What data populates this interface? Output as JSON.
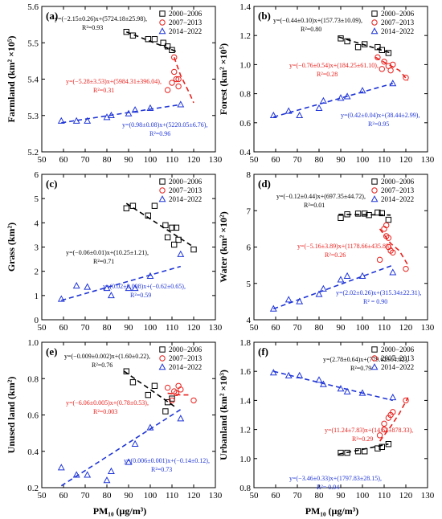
{
  "figure": {
    "shared_xlabel": "PM₁₀ (μg/m³)",
    "legend_names": [
      "2000−2006",
      "2007−2013",
      "2014−2022"
    ],
    "colors": {
      "s2000": "#000000",
      "s2007": "#e8211d",
      "s2014": "#1f35d6"
    }
  },
  "chart_data": [
    {
      "type": "scatter",
      "panel": "(a)",
      "ylabel": "Farmland (km² ×10⁵)",
      "xlim": [
        50,
        130
      ],
      "ylim": [
        5.2,
        5.6
      ],
      "xticks": [
        50,
        60,
        70,
        80,
        90,
        100,
        110,
        120,
        130
      ],
      "yticks": [
        5.2,
        5.3,
        5.4,
        5.5,
        5.6
      ],
      "ytick_labels": [
        "5.2",
        "5.3",
        "5.4",
        "5.5",
        "5.6"
      ],
      "series": [
        {
          "name": "2000−2006",
          "marker": "square",
          "x": [
            89,
            92,
            99,
            102,
            106,
            108,
            110
          ],
          "y": [
            5.53,
            5.52,
            5.51,
            5.51,
            5.5,
            5.49,
            5.48
          ],
          "fit": [
            [
              89,
              5.53
            ],
            [
              112,
              5.476
            ]
          ],
          "equation": "y=(−2.15±0.26)x+(5724.18±25.98),",
          "r2": "R²=0.93"
        },
        {
          "name": "2007−2013",
          "marker": "circle",
          "x": [
            111,
            111,
            112,
            113,
            113,
            110,
            108
          ],
          "y": [
            5.46,
            5.42,
            5.4,
            5.4,
            5.38,
            5.39,
            5.37
          ],
          "fit": [
            [
              111,
              5.46
            ],
            [
              114,
              5.41
            ],
            [
              118,
              5.362
            ],
            [
              120,
              5.335
            ]
          ],
          "equation": "y=(−5.28±3.53)x+(5984.31±396.04),",
          "r2": "R²=0.31"
        },
        {
          "name": "2014−2022",
          "marker": "triangle",
          "x": [
            59,
            66,
            71,
            80,
            82,
            90,
            93,
            100,
            114
          ],
          "y": [
            5.285,
            5.285,
            5.285,
            5.295,
            5.3,
            5.305,
            5.315,
            5.32,
            5.33
          ],
          "fit": [
            [
              59,
              5.28
            ],
            [
              114,
              5.33
            ]
          ],
          "equation": "y=(0.98±0.08)x+(5220.05±6.76),",
          "r2": "R²=0.96"
        }
      ]
    },
    {
      "type": "scatter",
      "panel": "(b)",
      "ylabel": "Forest (km² ×10⁵)",
      "xlim": [
        50,
        130
      ],
      "ylim": [
        0.4,
        1.4
      ],
      "xticks": [
        50,
        60,
        70,
        80,
        90,
        100,
        110,
        120,
        130
      ],
      "yticks": [
        0.4,
        0.6,
        0.8,
        1.0,
        1.2,
        1.4
      ],
      "ytick_labels": [
        "0.4",
        "0.6",
        "0.8",
        "1.0",
        "1.2",
        "1.4"
      ],
      "series": [
        {
          "name": "2000−2006",
          "marker": "square",
          "x": [
            90,
            93,
            98,
            101,
            107,
            109,
            112
          ],
          "y": [
            1.18,
            1.16,
            1.12,
            1.14,
            1.12,
            1.1,
            1.08
          ],
          "fit": [
            [
              89,
              1.19
            ],
            [
              113,
              1.08
            ]
          ],
          "equation": "y=(−0.44±0.10)x+(157.73±10.09),",
          "r2": "R²=0.80"
        },
        {
          "name": "2007−2013",
          "marker": "circle",
          "x": [
            112,
            113,
            114,
            110,
            109,
            107,
            120
          ],
          "y": [
            0.99,
            0.96,
            1.0,
            1.02,
            0.97,
            1.05,
            0.91
          ],
          "fit": [
            [
              106,
              1.05
            ],
            [
              112,
              1.0
            ],
            [
              117,
              0.96
            ],
            [
              121,
              0.89
            ]
          ],
          "equation": "y=(−0.76±0.54)x+(184.25±61.10),",
          "r2": "R²=0.28"
        },
        {
          "name": "2014−2022",
          "marker": "triangle",
          "x": [
            59,
            66,
            71,
            80,
            82,
            90,
            93,
            100,
            114
          ],
          "y": [
            0.65,
            0.68,
            0.65,
            0.7,
            0.75,
            0.77,
            0.78,
            0.82,
            0.87
          ],
          "fit": [
            [
              59,
              0.64
            ],
            [
              114,
              0.87
            ]
          ],
          "equation": "y=(0.42±0.04)x+(38.44±2.99),",
          "r2": "R²=0.95"
        }
      ]
    },
    {
      "type": "scatter",
      "panel": "(c)",
      "ylabel": "Grass (km²)",
      "xlim": [
        50,
        130
      ],
      "ylim": [
        0,
        6
      ],
      "xticks": [
        50,
        60,
        70,
        80,
        90,
        100,
        110,
        120,
        130
      ],
      "yticks": [
        0,
        1,
        2,
        3,
        4,
        5,
        6
      ],
      "ytick_labels": [
        "0",
        "1",
        "2",
        "3",
        "4",
        "5",
        "6"
      ],
      "series": [
        {
          "name": "2000−2006",
          "marker": "square",
          "x": [
            89,
            92,
            99,
            102,
            107,
            108,
            110,
            111,
            112,
            113,
            120
          ],
          "y": [
            4.6,
            4.7,
            4.3,
            4.7,
            3.9,
            3.4,
            3.8,
            3.1,
            3.8,
            3.3,
            2.9
          ],
          "fit": [
            [
              89,
              4.8
            ],
            [
              120,
              3.0
            ]
          ],
          "equation": "y=(−0.06±0.01)x+(10.25±1.21),",
          "r2": "R²=0.71"
        },
        {
          "name": "2007−2013",
          "marker": "circle",
          "x": [],
          "y": [],
          "fit": [],
          "equation": "",
          "r2": ""
        },
        {
          "name": "2014−2022",
          "marker": "triangle",
          "x": [
            59,
            66,
            71,
            80,
            82,
            90,
            93,
            100,
            114
          ],
          "y": [
            0.85,
            1.4,
            1.35,
            1.3,
            1.0,
            1.3,
            1.3,
            1.8,
            2.7
          ],
          "fit": [
            [
              59,
              0.8
            ],
            [
              114,
              2.2
            ]
          ],
          "equation": "y=(0.02±0.008)x+(−0.62±0.65),",
          "r2": "R²=0.59"
        }
      ]
    },
    {
      "type": "scatter",
      "panel": "(d)",
      "ylabel": "Water (km² ×10²)",
      "xlim": [
        50,
        130
      ],
      "ylim": [
        4,
        8
      ],
      "xticks": [
        50,
        60,
        70,
        80,
        90,
        100,
        110,
        120,
        130
      ],
      "yticks": [
        4,
        5,
        6,
        7,
        8
      ],
      "ytick_labels": [
        "4",
        "5",
        "6",
        "7",
        "8"
      ],
      "series": [
        {
          "name": "2000−2006",
          "marker": "square",
          "x": [
            90,
            93,
            98,
            101,
            103,
            107,
            109,
            112
          ],
          "y": [
            6.8,
            6.9,
            6.92,
            6.92,
            6.88,
            6.95,
            6.93,
            6.75
          ],
          "fit": [
            [
              89,
              6.9
            ],
            [
              113,
              6.88
            ]
          ],
          "equation": "y=(−0.12±0.44)x+(697.35±44.72),",
          "r2": "R²=0.01"
        },
        {
          "name": "2007−2013",
          "marker": "circle",
          "x": [
            110,
            111,
            111,
            112,
            112,
            113,
            108,
            114,
            120
          ],
          "y": [
            6.5,
            6.6,
            6.3,
            6.0,
            6.25,
            5.9,
            5.65,
            5.85,
            5.4
          ],
          "fit": [
            [
              108,
              6.5
            ],
            [
              113,
              6.1
            ],
            [
              117,
              5.9
            ],
            [
              121,
              5.5
            ]
          ],
          "equation": "y=(−5.16±3.89)x+(1178.66±435.83),",
          "r2": "R²=0.26"
        },
        {
          "name": "2014−2022",
          "marker": "triangle",
          "x": [
            59,
            66,
            71,
            80,
            82,
            90,
            93,
            100,
            114
          ],
          "y": [
            4.3,
            4.55,
            4.5,
            4.7,
            4.85,
            5.1,
            5.2,
            5.2,
            5.3
          ],
          "fit": [
            [
              59,
              4.3
            ],
            [
              114,
              5.5
            ]
          ],
          "equation": "y=(2.02±0.26)x+(315.34±22.31),",
          "r2": "R² = 0.90"
        }
      ]
    },
    {
      "type": "scatter",
      "panel": "(e)",
      "ylabel": "Unused land (km²)",
      "xlim": [
        50,
        130
      ],
      "ylim": [
        0.2,
        1.0
      ],
      "xticks": [
        50,
        60,
        70,
        80,
        90,
        100,
        110,
        120,
        130
      ],
      "yticks": [
        0.2,
        0.4,
        0.6,
        0.8,
        1.0
      ],
      "ytick_labels": [
        "0.2",
        "0.4",
        "0.6",
        "0.8",
        "1.0"
      ],
      "series": [
        {
          "name": "2000−2006",
          "marker": "square",
          "x": [
            89,
            92,
            99,
            102,
            107,
            108,
            110
          ],
          "y": [
            0.84,
            0.78,
            0.71,
            0.76,
            0.62,
            0.67,
            0.69
          ],
          "fit": [
            [
              88,
              0.84
            ],
            [
              112,
              0.64
            ]
          ],
          "equation": "y=(−0.009±0.002)x+(1.60±0.22),",
          "r2": "R²=0.76"
        },
        {
          "name": "2007−2013",
          "marker": "circle",
          "x": [
            108,
            110,
            111,
            112,
            113,
            114,
            120
          ],
          "y": [
            0.75,
            0.68,
            0.73,
            0.72,
            0.76,
            0.74,
            0.68
          ],
          "fit": [
            [
              108,
              0.72
            ],
            [
              114,
              0.71
            ],
            [
              118,
              0.71
            ]
          ],
          "equation": "y=(−6.06±0.005)x+(0.78±0.53),",
          "r2": "R²=0.003"
        },
        {
          "name": "2014−2022",
          "marker": "triangle",
          "x": [
            59,
            66,
            71,
            80,
            82,
            90,
            93,
            100,
            114
          ],
          "y": [
            0.31,
            0.27,
            0.27,
            0.24,
            0.29,
            0.34,
            0.44,
            0.53,
            0.58
          ],
          "fit": [
            [
              59,
              0.21
            ],
            [
              114,
              0.63
            ]
          ],
          "equation": "y=(0.006±0.001)x+(−0.14±0.12),",
          "r2": "R²=0.73"
        }
      ]
    },
    {
      "type": "scatter",
      "panel": "(f)",
      "ylabel": "Urbanland (km² ×10³)",
      "xlim": [
        50,
        130
      ],
      "ylim": [
        0.8,
        1.8
      ],
      "xticks": [
        50,
        60,
        70,
        80,
        90,
        100,
        110,
        120,
        130
      ],
      "yticks": [
        0.8,
        1.0,
        1.2,
        1.4,
        1.6,
        1.8
      ],
      "ytick_labels": [
        "0.8",
        "1.0",
        "1.2",
        "1.4",
        "1.6",
        "1.8"
      ],
      "series": [
        {
          "name": "2000−2006",
          "marker": "square",
          "x": [
            90,
            93,
            98,
            101,
            107,
            109,
            112
          ],
          "y": [
            1.04,
            1.04,
            1.05,
            1.05,
            1.07,
            1.08,
            1.1
          ],
          "fit": [
            [
              89,
              1.03
            ],
            [
              112,
              1.1
            ]
          ],
          "equation": "y=(2.78±0.64)x+(779.62±64.82),",
          "r2": "R²=0.79"
        },
        {
          "name": "2007−2013",
          "marker": "circle",
          "x": [
            108,
            110,
            110,
            112,
            113,
            114,
            120
          ],
          "y": [
            1.16,
            1.2,
            1.24,
            1.28,
            1.3,
            1.32,
            1.4
          ],
          "fit": [
            [
              108,
              1.12
            ],
            [
              113,
              1.22
            ],
            [
              117,
              1.31
            ],
            [
              121,
              1.42
            ]
          ],
          "equation": "y=(11.24±7.83)x+(14.63±878.33),",
          "r2": "R²=0.29"
        },
        {
          "name": "2014−2022",
          "marker": "triangle",
          "x": [
            59,
            66,
            71,
            80,
            82,
            90,
            93,
            100,
            114
          ],
          "y": [
            1.59,
            1.57,
            1.57,
            1.54,
            1.51,
            1.48,
            1.46,
            1.45,
            1.42
          ],
          "fit": [
            [
              59,
              1.6
            ],
            [
              114,
              1.4
            ]
          ],
          "equation": "y=(−3.46±0.33)x+(1797.83±28.15),",
          "r2": "R²= 0.94"
        }
      ]
    }
  ]
}
